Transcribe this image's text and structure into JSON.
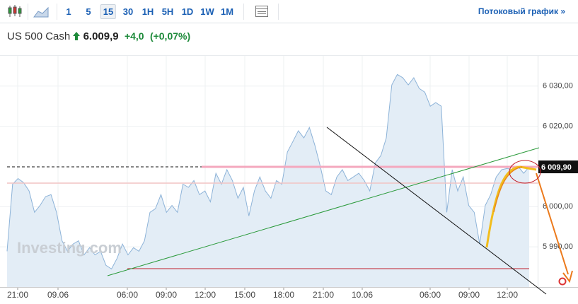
{
  "toolbar": {
    "intervals": [
      "1",
      "5",
      "15",
      "30",
      "1H",
      "5H",
      "1D",
      "1W",
      "1M"
    ],
    "active_interval": "15",
    "stream_link": "Потоковый график »"
  },
  "header": {
    "instrument": "US 500 Cash",
    "price": "6.009,9",
    "change": "+4,0",
    "change_pct": "(+0,07%)"
  },
  "chart_data": {
    "type": "area",
    "watermark": "Investing.com",
    "xticks": [
      "21:00",
      "09.06",
      "06:00",
      "09:00",
      "12:00",
      "15:00",
      "18:00",
      "21:00",
      "10.06",
      "06:00",
      "09:00",
      "12:00"
    ],
    "ylim": [
      5980,
      6037
    ],
    "yticks": [
      {
        "value": 5990,
        "label": "5 990,00"
      },
      {
        "value": 6000,
        "label": "6 000,00"
      },
      {
        "value": 6020,
        "label": "6 020,00"
      },
      {
        "value": 6030,
        "label": "6 030,00"
      }
    ],
    "last_price": {
      "value": 6009.9,
      "label": "6 009,90"
    },
    "color": "#8db3d8",
    "fill": "#e3edf6",
    "grid": true,
    "values": [
      5988.9,
      6005.6,
      6007.0,
      6006.0,
      6003.9,
      5998.6,
      6000.3,
      6002.5,
      6003.0,
      5998.6,
      5991.5,
      5988.9,
      5990.7,
      5991.5,
      5988.0,
      5989.8,
      5988.0,
      5988.9,
      5985.4,
      5984.5,
      5987.1,
      5990.7,
      5988.0,
      5989.8,
      5988.9,
      5991.5,
      5998.6,
      5999.5,
      6003.0,
      5998.6,
      6000.3,
      5998.6,
      6005.6,
      6004.8,
      6006.5,
      6003.0,
      6003.9,
      6001.2,
      6008.3,
      6005.6,
      6009.2,
      6006.5,
      6002.1,
      6004.8,
      5997.7,
      6003.9,
      6007.4,
      6003.9,
      6002.1,
      6006.5,
      6005.6,
      6013.6,
      6016.2,
      6018.9,
      6017.1,
      6019.7,
      6015.3,
      6010.0,
      6003.9,
      6003.0,
      6007.4,
      6009.2,
      6006.5,
      6007.4,
      6008.3,
      6006.5,
      6003.9,
      6010.9,
      6012.7,
      6017.1,
      6030.3,
      6032.9,
      6032.1,
      6030.3,
      6032.1,
      6029.4,
      6028.5,
      6025.0,
      6025.9,
      6025.0,
      5998.6,
      6009.2,
      6003.9,
      6007.4,
      6000.3,
      5998.6,
      5990.7,
      6000.3,
      6003.0,
      6007.4,
      6009.2,
      6009.5,
      6009.2,
      6010.0,
      6008.3,
      6009.9
    ]
  }
}
